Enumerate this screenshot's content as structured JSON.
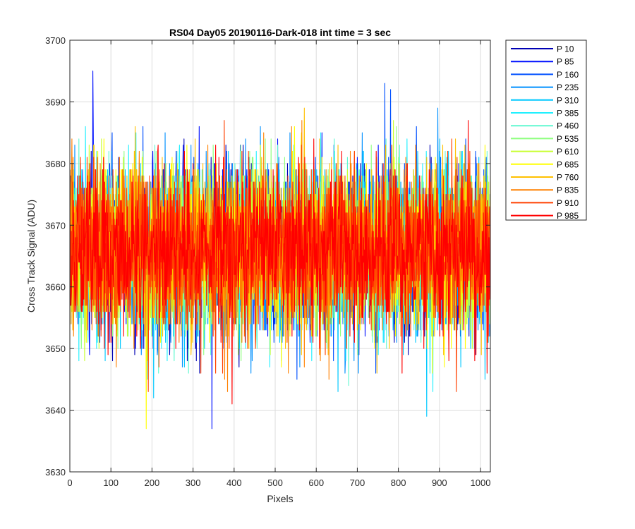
{
  "chart_data": {
    "type": "line",
    "title": "RS04 Day05 20190116-Dark-018 int time = 3 sec",
    "xlabel": "Pixels",
    "ylabel": "Cross Track Signal (ADU)",
    "xlim": [
      0,
      1024
    ],
    "ylim": [
      3630,
      3700
    ],
    "xticks": [
      0,
      100,
      200,
      300,
      400,
      500,
      600,
      700,
      800,
      900,
      1000
    ],
    "yticks": [
      3630,
      3640,
      3650,
      3660,
      3670,
      3680,
      3690,
      3700
    ],
    "grid": true,
    "legend_position": "outside-top-right",
    "noise": {
      "mean": 3666,
      "sd": 6.5,
      "n_points": 1024
    },
    "series": [
      {
        "name": "P 10",
        "color": "#0000b4"
      },
      {
        "name": "P 85",
        "color": "#0010ff"
      },
      {
        "name": "P 160",
        "color": "#0050ff"
      },
      {
        "name": "P 235",
        "color": "#0090ff"
      },
      {
        "name": "P 310",
        "color": "#00c8ff"
      },
      {
        "name": "P 385",
        "color": "#20f0ff"
      },
      {
        "name": "P 460",
        "color": "#60f8d0"
      },
      {
        "name": "P 535",
        "color": "#90ff80"
      },
      {
        "name": "P 610",
        "color": "#c8ff30"
      },
      {
        "name": "P 685",
        "color": "#ffff00"
      },
      {
        "name": "P 760",
        "color": "#ffc000"
      },
      {
        "name": "P 835",
        "color": "#ff8000"
      },
      {
        "name": "P 910",
        "color": "#ff4000"
      },
      {
        "name": "P 985",
        "color": "#ff0000"
      }
    ],
    "extremes": [
      {
        "series": "P 85",
        "x": 55,
        "y": 3695
      },
      {
        "series": "P 85",
        "x": 345,
        "y": 3637
      },
      {
        "series": "P 685",
        "x": 185,
        "y": 3637
      },
      {
        "series": "P 310",
        "x": 868,
        "y": 3639
      },
      {
        "series": "P 160",
        "x": 766,
        "y": 3693
      }
    ]
  }
}
